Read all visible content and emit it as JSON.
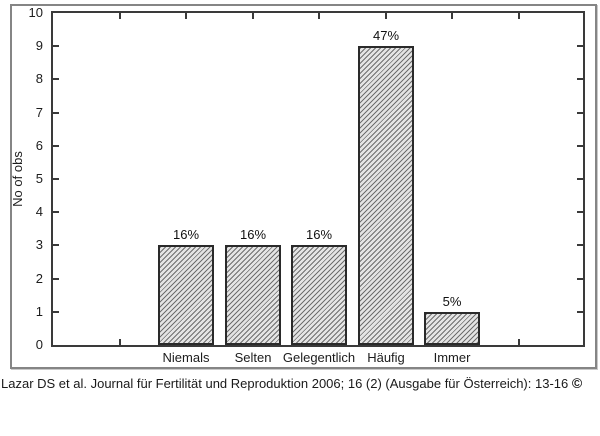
{
  "chart_data": {
    "type": "bar",
    "categories": [
      "Niemals",
      "Selten",
      "Gelegentlich",
      "Häufig",
      "Immer"
    ],
    "values": [
      3,
      3,
      3,
      9,
      1
    ],
    "bar_labels": [
      "16%",
      "16%",
      "16%",
      "47%",
      "5%"
    ],
    "title": "",
    "xlabel": "",
    "ylabel": "No of obs",
    "ylim": [
      0,
      10
    ],
    "ytick_step": 1,
    "yticks": [
      0,
      1,
      2,
      3,
      4,
      5,
      6,
      7,
      8,
      9,
      10
    ],
    "grid": false,
    "legend_position": "none",
    "bar_fill": "#e4e4e4",
    "bar_hatch_color": "#6e6e6e",
    "bar_border_color": "#2a2a2a",
    "axis_color": "#3a3a3a",
    "text_color": "#1c1c1c",
    "figure_border_color": "#858585"
  },
  "figure": {
    "caption_text": "Lazar DS et al. Journal für Fertilität und Reproduktion 2006; 16 (2) (Ausgabe für Österreich): 13-16 ",
    "caption_symbol": "©"
  }
}
